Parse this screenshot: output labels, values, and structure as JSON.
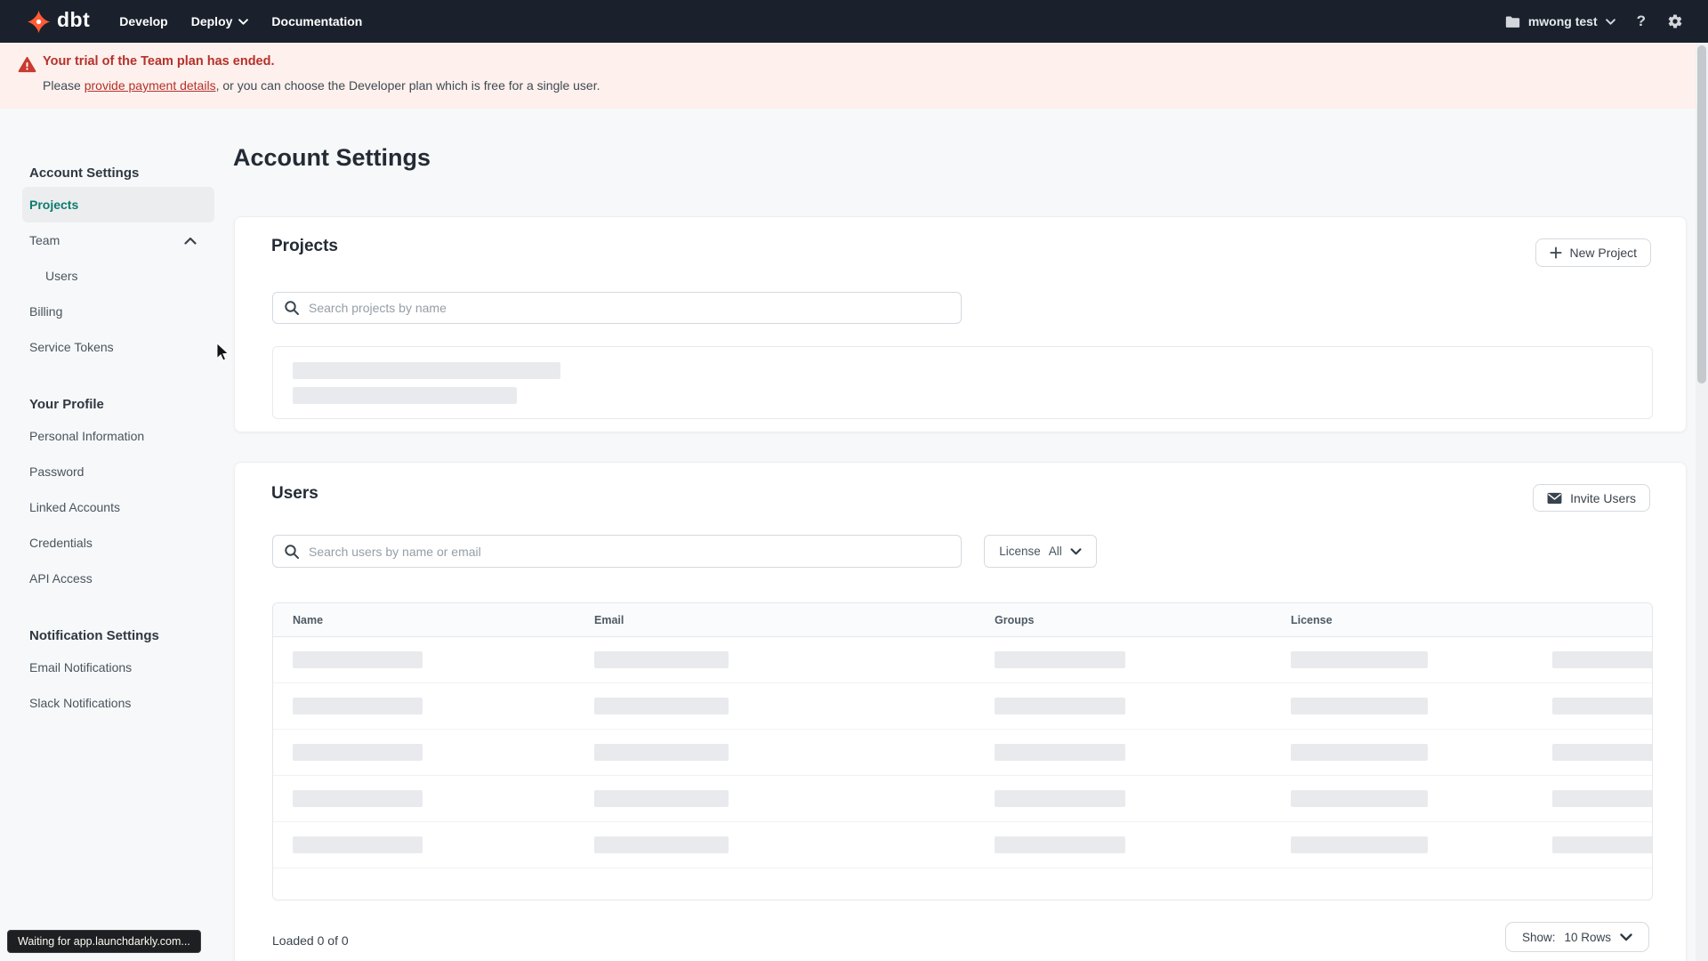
{
  "nav": {
    "brand": "dbt",
    "develop_label": "Develop",
    "deploy_label": "Deploy",
    "documentation_label": "Documentation",
    "account_label": "mwong test"
  },
  "banner": {
    "title": "Your trial of the Team plan has ended.",
    "body_prefix": "Please ",
    "link_label": "provide payment details",
    "body_suffix": ", or you can choose the Developer plan which is free for a single user."
  },
  "sidebar": {
    "account_settings_heading": "Account Settings",
    "projects": "Projects",
    "team": "Team",
    "users": "Users",
    "billing": "Billing",
    "service_tokens": "Service Tokens",
    "your_profile_heading": "Your Profile",
    "personal_information": "Personal Information",
    "password": "Password",
    "linked_accounts": "Linked Accounts",
    "credentials": "Credentials",
    "api_access": "API Access",
    "notification_settings_heading": "Notification Settings",
    "email_notifications": "Email Notifications",
    "slack_notifications": "Slack Notifications"
  },
  "main": {
    "title": "Account Settings",
    "projects": {
      "heading": "Projects",
      "new_project_label": "New Project",
      "search_placeholder": "Search projects by name"
    },
    "users": {
      "heading": "Users",
      "invite_label": "Invite Users",
      "search_placeholder": "Search users by name or email",
      "license_label": "License",
      "license_value": "All",
      "columns": [
        "Name",
        "Email",
        "Groups",
        "License"
      ],
      "skeleton_row_count": 5,
      "loaded_text": "Loaded 0 of 0",
      "show_label": "Show:",
      "show_value": "10 Rows"
    }
  },
  "toast": {
    "text": "Waiting for app.launchdarkly.com..."
  },
  "colors": {
    "nav_bg": "#1a212c",
    "brand_orange": "#ff5c35",
    "banner_bg": "#fdf0ed",
    "alert_red": "#b5312a",
    "accent_teal": "#0c7b6e",
    "page_bg": "#f7f8f9"
  }
}
